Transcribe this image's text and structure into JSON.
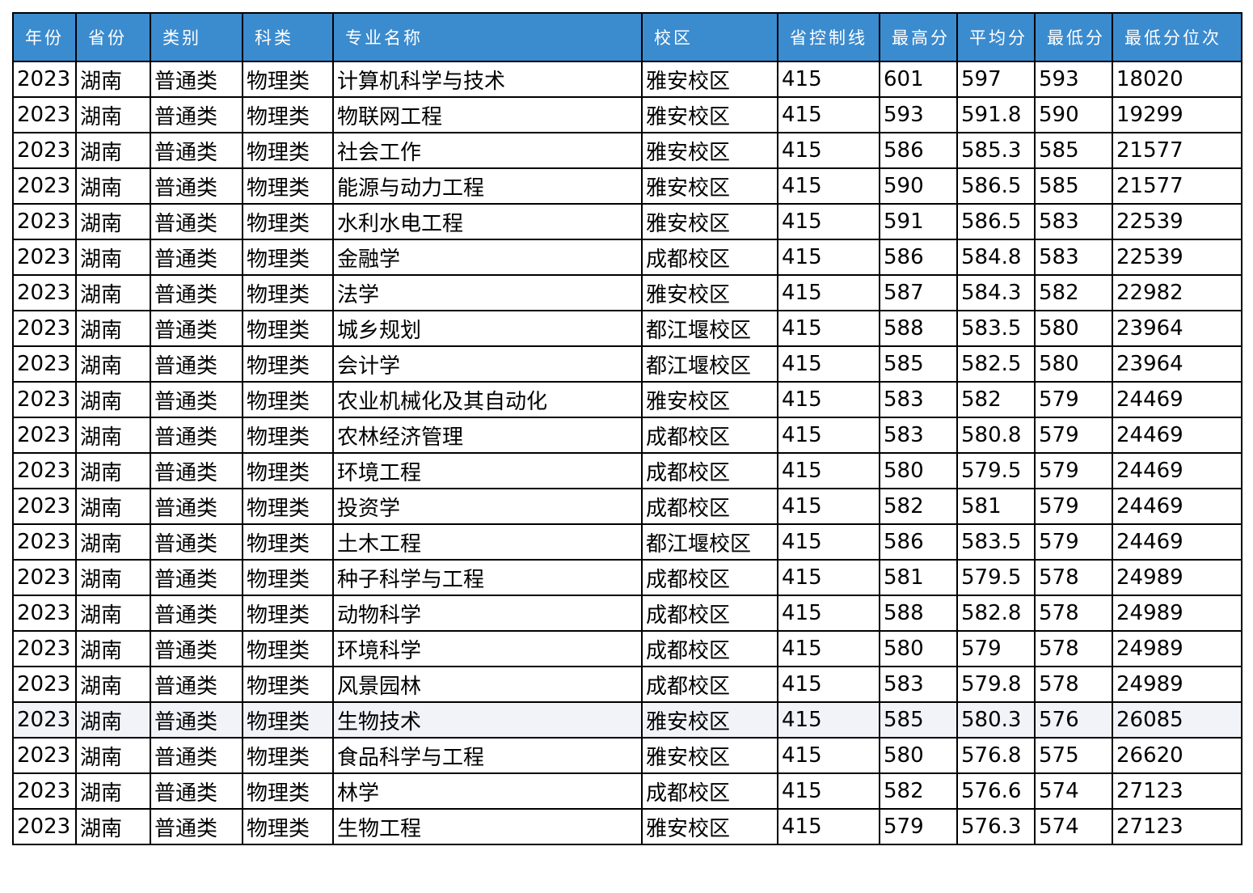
{
  "colors": {
    "header_background": "#3b8bcf",
    "header_text": "#ffffff",
    "border": "#000000",
    "highlight_row": "#f1f3f9"
  },
  "table": {
    "headers": [
      "年份",
      "省份",
      "类别",
      "科类",
      "专业名称",
      "校区",
      "省控制线",
      "最高分",
      "平均分",
      "最低分",
      "最低分位次"
    ],
    "highlighted_row_index": 18,
    "rows": [
      [
        "2023",
        "湖南",
        "普通类",
        "物理类",
        "计算机科学与技术",
        "雅安校区",
        "415",
        "601",
        "597",
        "593",
        "18020"
      ],
      [
        "2023",
        "湖南",
        "普通类",
        "物理类",
        "物联网工程",
        "雅安校区",
        "415",
        "593",
        "591.8",
        "590",
        "19299"
      ],
      [
        "2023",
        "湖南",
        "普通类",
        "物理类",
        "社会工作",
        "雅安校区",
        "415",
        "586",
        "585.3",
        "585",
        "21577"
      ],
      [
        "2023",
        "湖南",
        "普通类",
        "物理类",
        "能源与动力工程",
        "雅安校区",
        "415",
        "590",
        "586.5",
        "585",
        "21577"
      ],
      [
        "2023",
        "湖南",
        "普通类",
        "物理类",
        "水利水电工程",
        "雅安校区",
        "415",
        "591",
        "586.5",
        "583",
        "22539"
      ],
      [
        "2023",
        "湖南",
        "普通类",
        "物理类",
        "金融学",
        "成都校区",
        "415",
        "586",
        "584.8",
        "583",
        "22539"
      ],
      [
        "2023",
        "湖南",
        "普通类",
        "物理类",
        "法学",
        "雅安校区",
        "415",
        "587",
        "584.3",
        "582",
        "22982"
      ],
      [
        "2023",
        "湖南",
        "普通类",
        "物理类",
        "城乡规划",
        "都江堰校区",
        "415",
        "588",
        "583.5",
        "580",
        "23964"
      ],
      [
        "2023",
        "湖南",
        "普通类",
        "物理类",
        "会计学",
        "都江堰校区",
        "415",
        "585",
        "582.5",
        "580",
        "23964"
      ],
      [
        "2023",
        "湖南",
        "普通类",
        "物理类",
        "农业机械化及其自动化",
        "雅安校区",
        "415",
        "583",
        "582",
        "579",
        "24469"
      ],
      [
        "2023",
        "湖南",
        "普通类",
        "物理类",
        "农林经济管理",
        "成都校区",
        "415",
        "583",
        "580.8",
        "579",
        "24469"
      ],
      [
        "2023",
        "湖南",
        "普通类",
        "物理类",
        "环境工程",
        "成都校区",
        "415",
        "580",
        "579.5",
        "579",
        "24469"
      ],
      [
        "2023",
        "湖南",
        "普通类",
        "物理类",
        "投资学",
        "成都校区",
        "415",
        "582",
        "581",
        "579",
        "24469"
      ],
      [
        "2023",
        "湖南",
        "普通类",
        "物理类",
        "土木工程",
        "都江堰校区",
        "415",
        "586",
        "583.5",
        "579",
        "24469"
      ],
      [
        "2023",
        "湖南",
        "普通类",
        "物理类",
        "种子科学与工程",
        "成都校区",
        "415",
        "581",
        "579.5",
        "578",
        "24989"
      ],
      [
        "2023",
        "湖南",
        "普通类",
        "物理类",
        "动物科学",
        "成都校区",
        "415",
        "588",
        "582.8",
        "578",
        "24989"
      ],
      [
        "2023",
        "湖南",
        "普通类",
        "物理类",
        "环境科学",
        "成都校区",
        "415",
        "580",
        "579",
        "578",
        "24989"
      ],
      [
        "2023",
        "湖南",
        "普通类",
        "物理类",
        "风景园林",
        "成都校区",
        "415",
        "583",
        "579.8",
        "578",
        "24989"
      ],
      [
        "2023",
        "湖南",
        "普通类",
        "物理类",
        "生物技术",
        "雅安校区",
        "415",
        "585",
        "580.3",
        "576",
        "26085"
      ],
      [
        "2023",
        "湖南",
        "普通类",
        "物理类",
        "食品科学与工程",
        "雅安校区",
        "415",
        "580",
        "576.8",
        "575",
        "26620"
      ],
      [
        "2023",
        "湖南",
        "普通类",
        "物理类",
        "林学",
        "成都校区",
        "415",
        "582",
        "576.6",
        "574",
        "27123"
      ],
      [
        "2023",
        "湖南",
        "普通类",
        "物理类",
        "生物工程",
        "雅安校区",
        "415",
        "579",
        "576.3",
        "574",
        "27123"
      ]
    ]
  }
}
